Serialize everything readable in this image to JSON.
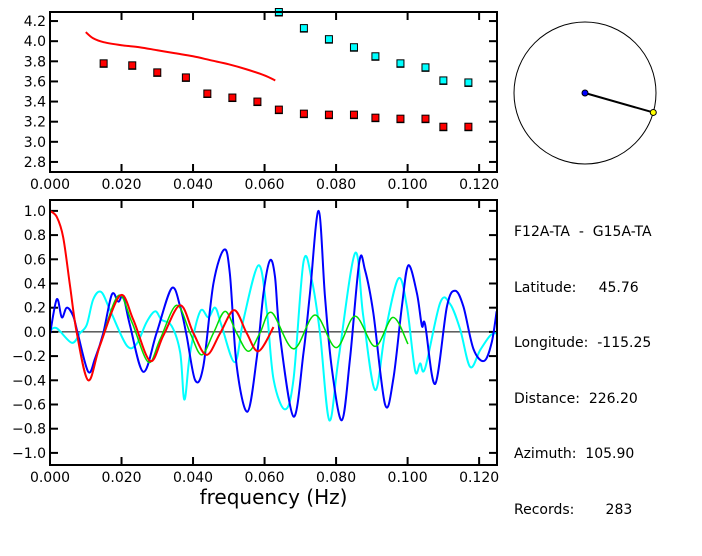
{
  "chart_data": [
    {
      "type": "scatter",
      "xlim": [
        0,
        0.125
      ],
      "ylim": [
        2.7,
        4.29
      ],
      "xticks": [
        "0.000",
        "0.020",
        "0.040",
        "0.060",
        "0.080",
        "0.100",
        "0.120"
      ],
      "yticks": [
        "2.8",
        "3.0",
        "3.2",
        "3.4",
        "3.6",
        "3.8",
        "4.0",
        "4.2"
      ],
      "grid": false,
      "series": [
        {
          "kind": "points",
          "color": "#ff0000",
          "points": [
            [
              0.015,
              3.78
            ],
            [
              0.023,
              3.76
            ],
            [
              0.03,
              3.69
            ],
            [
              0.038,
              3.64
            ],
            [
              0.044,
              3.48
            ],
            [
              0.051,
              3.44
            ],
            [
              0.058,
              3.4
            ],
            [
              0.064,
              3.32
            ],
            [
              0.071,
              3.28
            ],
            [
              0.078,
              3.27
            ],
            [
              0.085,
              3.27
            ],
            [
              0.091,
              3.24
            ],
            [
              0.098,
              3.23
            ],
            [
              0.105,
              3.23
            ],
            [
              0.11,
              3.15
            ],
            [
              0.117,
              3.15
            ]
          ]
        },
        {
          "kind": "points",
          "color": "#00ffff",
          "points": [
            [
              0.064,
              4.29
            ],
            [
              0.071,
              4.13
            ],
            [
              0.078,
              4.02
            ],
            [
              0.085,
              3.94
            ],
            [
              0.091,
              3.85
            ],
            [
              0.098,
              3.78
            ],
            [
              0.105,
              3.74
            ],
            [
              0.11,
              3.61
            ],
            [
              0.117,
              3.59
            ]
          ]
        },
        {
          "kind": "line",
          "color": "#ff0000",
          "points": [
            [
              0.01,
              4.09
            ],
            [
              0.012,
              4.03
            ],
            [
              0.015,
              3.99
            ],
            [
              0.02,
              3.96
            ],
            [
              0.025,
              3.94
            ],
            [
              0.03,
              3.91
            ],
            [
              0.035,
              3.88
            ],
            [
              0.04,
              3.85
            ],
            [
              0.045,
              3.81
            ],
            [
              0.05,
              3.77
            ],
            [
              0.055,
              3.72
            ],
            [
              0.06,
              3.66
            ],
            [
              0.063,
              3.61
            ]
          ]
        }
      ]
    },
    {
      "type": "line",
      "xlim": [
        0,
        0.125
      ],
      "ylim": [
        -1.1,
        1.09
      ],
      "xticks": [
        "0.000",
        "0.020",
        "0.040",
        "0.060",
        "0.080",
        "0.100",
        "0.120"
      ],
      "yticks": [
        "-1.0",
        "-0.8",
        "-0.6",
        "-0.4",
        "-0.2",
        "0.0",
        "0.2",
        "0.4",
        "0.6",
        "0.8",
        "1.0"
      ],
      "xlabel": "frequency (Hz)",
      "grid": false,
      "zero_line": true,
      "series": [
        {
          "color": "#00ffff",
          "points": [
            [
              0,
              0.01
            ],
            [
              0.0019,
              0.03
            ],
            [
              0.0061,
              -0.09
            ],
            [
              0.0084,
              -0.01
            ],
            [
              0.0103,
              0.06
            ],
            [
              0.0121,
              0.27
            ],
            [
              0.0143,
              0.33
            ],
            [
              0.0168,
              0.18
            ],
            [
              0.0214,
              -0.11
            ],
            [
              0.0242,
              -0.1
            ],
            [
              0.027,
              0.08
            ],
            [
              0.0294,
              0.17
            ],
            [
              0.0312,
              0.1
            ],
            [
              0.034,
              0.05
            ],
            [
              0.0364,
              -0.17
            ],
            [
              0.0376,
              -0.56
            ],
            [
              0.0392,
              -0.17
            ],
            [
              0.042,
              0.17
            ],
            [
              0.0443,
              0.12
            ],
            [
              0.0462,
              0.2
            ],
            [
              0.048,
              0.05
            ],
            [
              0.0517,
              -0.25
            ],
            [
              0.0541,
              0.1
            ],
            [
              0.0583,
              0.55
            ],
            [
              0.0606,
              0.18
            ],
            [
              0.0625,
              -0.39
            ],
            [
              0.0657,
              -0.64
            ],
            [
              0.0681,
              -0.39
            ],
            [
              0.0709,
              0.58
            ],
            [
              0.0732,
              0.43
            ],
            [
              0.0755,
              -0.01
            ],
            [
              0.0781,
              -0.73
            ],
            [
              0.0807,
              -0.22
            ],
            [
              0.0853,
              0.65
            ],
            [
              0.0876,
              0.13
            ],
            [
              0.0909,
              -0.48
            ],
            [
              0.0937,
              -0.01
            ],
            [
              0.0974,
              0.44
            ],
            [
              0.0998,
              0.21
            ],
            [
              0.1021,
              -0.32
            ],
            [
              0.1035,
              -0.26
            ],
            [
              0.1049,
              -0.3
            ],
            [
              0.1091,
              0.24
            ],
            [
              0.1119,
              0.23
            ],
            [
              0.1147,
              0.02
            ],
            [
              0.1175,
              -0.29
            ],
            [
              0.1203,
              -0.15
            ],
            [
              0.1231,
              -0.03
            ],
            [
              0.1249,
              -0.01
            ]
          ]
        },
        {
          "color": "#0000ff",
          "points": [
            [
              0,
              -0.02
            ],
            [
              0.0019,
              0.27
            ],
            [
              0.0033,
              0.12
            ],
            [
              0.0047,
              0.2
            ],
            [
              0.0065,
              0.13
            ],
            [
              0.0079,
              -0.03
            ],
            [
              0.0107,
              -0.33
            ],
            [
              0.0126,
              -0.22
            ],
            [
              0.0149,
              -0.01
            ],
            [
              0.0173,
              0.31
            ],
            [
              0.0191,
              0.25
            ],
            [
              0.0205,
              0.29
            ],
            [
              0.0224,
              0.05
            ],
            [
              0.0261,
              -0.33
            ],
            [
              0.0298,
              -0.01
            ],
            [
              0.034,
              0.36
            ],
            [
              0.0364,
              0.21
            ],
            [
              0.0382,
              -0.03
            ],
            [
              0.0406,
              -0.4
            ],
            [
              0.0429,
              -0.28
            ],
            [
              0.0457,
              0.4
            ],
            [
              0.0487,
              0.68
            ],
            [
              0.0503,
              0.48
            ],
            [
              0.0522,
              -0.28
            ],
            [
              0.0552,
              -0.66
            ],
            [
              0.0578,
              -0.22
            ],
            [
              0.0597,
              0.32
            ],
            [
              0.0615,
              0.59
            ],
            [
              0.0629,
              0.46
            ],
            [
              0.0643,
              -0.03
            ],
            [
              0.0681,
              -0.7
            ],
            [
              0.0709,
              -0.17
            ],
            [
              0.0727,
              0.32
            ],
            [
              0.0751,
              1.0
            ],
            [
              0.0769,
              0.29
            ],
            [
              0.0788,
              -0.3
            ],
            [
              0.0816,
              -0.73
            ],
            [
              0.0839,
              -0.22
            ],
            [
              0.0865,
              0.58
            ],
            [
              0.0881,
              0.51
            ],
            [
              0.0904,
              0.16
            ],
            [
              0.0937,
              -0.6
            ],
            [
              0.096,
              -0.39
            ],
            [
              0.0984,
              0.21
            ],
            [
              0.1002,
              0.55
            ],
            [
              0.1026,
              0.32
            ],
            [
              0.104,
              0.05
            ],
            [
              0.1049,
              0.06
            ],
            [
              0.1077,
              -0.43
            ],
            [
              0.111,
              0.21
            ],
            [
              0.1133,
              0.34
            ],
            [
              0.1156,
              0.21
            ],
            [
              0.1184,
              -0.14
            ],
            [
              0.1214,
              -0.24
            ],
            [
              0.1235,
              -0.09
            ],
            [
              0.1249,
              0.17
            ]
          ]
        },
        {
          "color": "#00dd00",
          "points": [
            [
              0.0075,
              -0.01
            ],
            [
              0.0107,
              -0.4
            ],
            [
              0.014,
              -0.11
            ],
            [
              0.0191,
              0.3
            ],
            [
              0.0229,
              0.08
            ],
            [
              0.0275,
              -0.25
            ],
            [
              0.0308,
              -0.06
            ],
            [
              0.0354,
              0.22
            ],
            [
              0.0392,
              -0.01
            ],
            [
              0.0424,
              -0.19
            ],
            [
              0.0457,
              -0.01
            ],
            [
              0.049,
              0.17
            ],
            [
              0.0522,
              -0.01
            ],
            [
              0.0555,
              -0.16
            ],
            [
              0.0587,
              -0.01
            ],
            [
              0.062,
              0.16
            ],
            [
              0.0681,
              -0.14
            ],
            [
              0.0741,
              0.14
            ],
            [
              0.08,
              -0.13
            ],
            [
              0.0853,
              0.13
            ],
            [
              0.0909,
              -0.12
            ],
            [
              0.0959,
              0.12
            ],
            [
              0.1001,
              -0.1
            ]
          ]
        },
        {
          "color": "#ff0000",
          "points": [
            [
              0,
              1.0
            ],
            [
              0.0019,
              0.95
            ],
            [
              0.0037,
              0.78
            ],
            [
              0.0056,
              0.38
            ],
            [
              0.0075,
              -0.01
            ],
            [
              0.0107,
              -0.4
            ],
            [
              0.014,
              -0.11
            ],
            [
              0.0196,
              0.3
            ],
            [
              0.0233,
              0.1
            ],
            [
              0.028,
              -0.24
            ],
            [
              0.0317,
              -0.03
            ],
            [
              0.0364,
              0.22
            ],
            [
              0.0401,
              -0.01
            ],
            [
              0.0438,
              -0.19
            ],
            [
              0.0476,
              -0.01
            ],
            [
              0.0515,
              0.18
            ],
            [
              0.055,
              -0.01
            ],
            [
              0.0583,
              -0.16
            ],
            [
              0.0625,
              0.04
            ]
          ]
        }
      ]
    },
    {
      "type": "map-azimuth",
      "azimuth_deg": 105.9,
      "center_color": "#0000ff",
      "end_color": "#ffff00"
    }
  ],
  "info": {
    "pair": "F12A-TA  -  G15A-TA",
    "lines": [
      "Latitude:     45.76",
      "Longitude:  -115.25",
      "Distance:  226.20",
      "Azimuth:  105.90",
      "Records:       283"
    ]
  }
}
